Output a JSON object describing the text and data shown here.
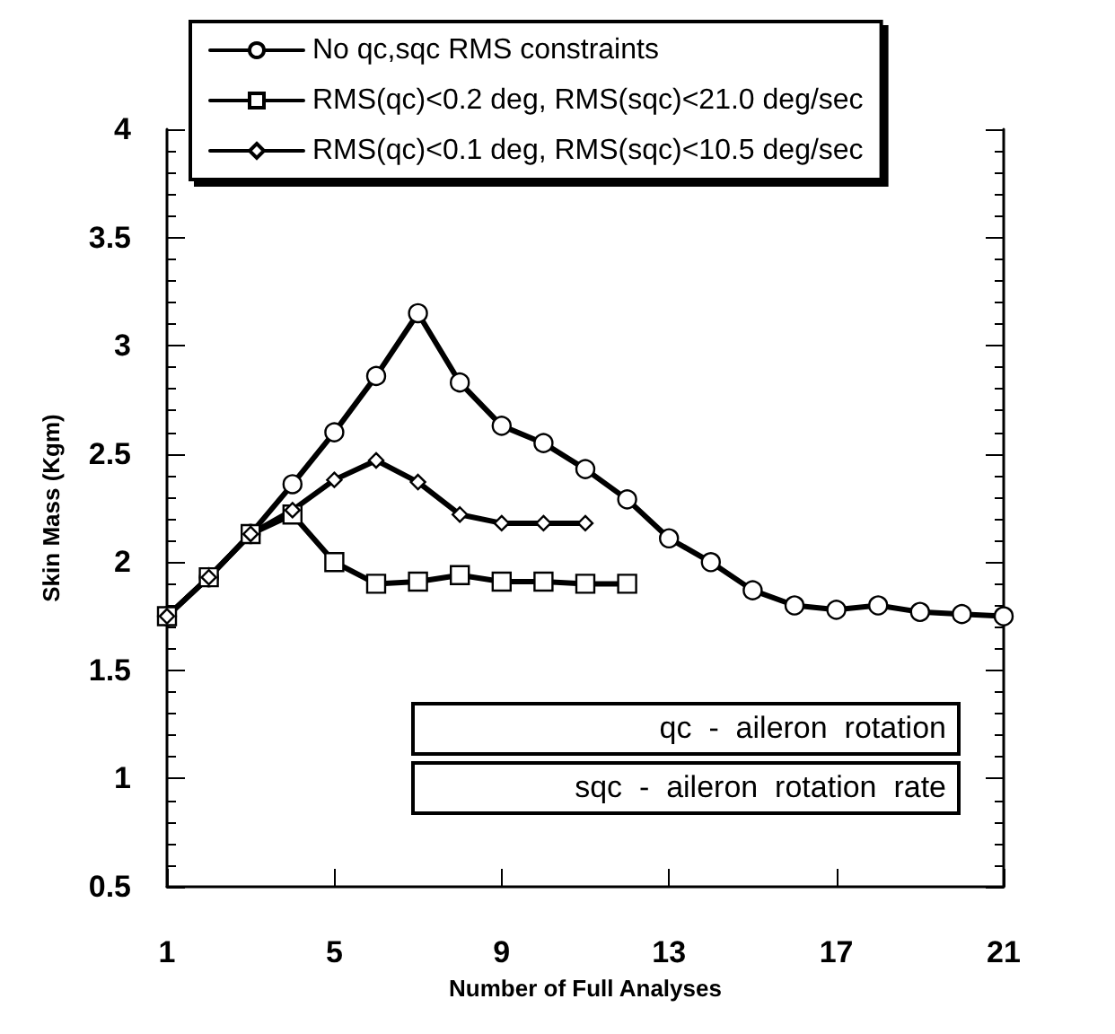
{
  "chart_data": {
    "type": "line",
    "xlabel": "Number of Full Analyses",
    "ylabel": "Skin Mass (Kgm)",
    "xlim": [
      1,
      21
    ],
    "xticks": [
      1,
      5,
      9,
      13,
      17,
      21
    ],
    "ylim": [
      0.5,
      4
    ],
    "yticks": [
      0.5,
      1,
      1.5,
      2,
      2.5,
      3,
      3.5,
      4
    ],
    "legend": "top",
    "grid": false,
    "line_style": "solid",
    "annotations": [
      "qc  -  aileron  rotation",
      "sqc  -  aileron  rotation  rate"
    ],
    "series": [
      {
        "name": "No qc,sqc RMS constraints",
        "color": "#000000",
        "marker": "circle",
        "x": [
          1,
          2,
          3,
          4,
          5,
          6,
          7,
          8,
          9,
          10,
          11,
          12,
          13,
          14,
          15,
          16,
          17,
          18,
          19,
          20,
          21
        ],
        "values": [
          1.75,
          1.93,
          2.13,
          2.36,
          2.6,
          2.86,
          3.15,
          2.83,
          2.63,
          2.55,
          2.43,
          2.29,
          2.11,
          2.0,
          1.87,
          1.8,
          1.78,
          1.8,
          1.77,
          1.76,
          1.75
        ]
      },
      {
        "name": "RMS(qc)<0.2 deg, RMS(sqc)<21.0 deg/sec",
        "color": "#000000",
        "marker": "square",
        "x": [
          1,
          2,
          3,
          4,
          5,
          6,
          7,
          8,
          9,
          10,
          11,
          12
        ],
        "values": [
          1.75,
          1.93,
          2.13,
          2.22,
          2.0,
          1.9,
          1.91,
          1.94,
          1.91,
          1.91,
          1.9,
          1.9
        ]
      },
      {
        "name": "RMS(qc)<0.1 deg, RMS(sqc)<10.5 deg/sec",
        "color": "#000000",
        "marker": "diamond",
        "x": [
          1,
          2,
          3,
          4,
          5,
          6,
          7,
          8,
          9,
          10,
          11
        ],
        "values": [
          1.75,
          1.93,
          2.13,
          2.24,
          2.38,
          2.47,
          2.37,
          2.22,
          2.18,
          2.18,
          2.18
        ]
      }
    ]
  }
}
